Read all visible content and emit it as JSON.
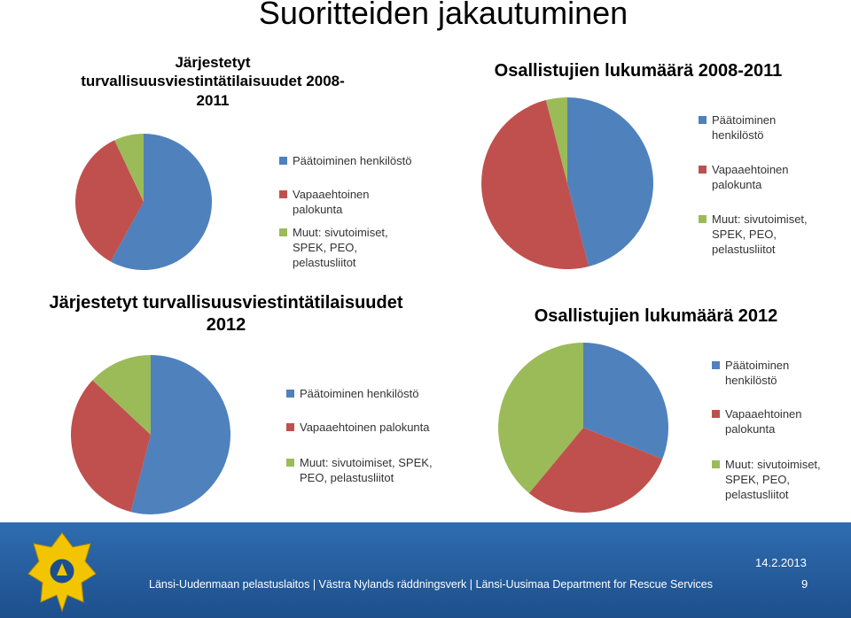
{
  "title": "Suoritteiden jakautuminen",
  "chart_data": [
    {
      "type": "pie",
      "title": "Järjestetyt turvallisuusviestintätilaisuudet 2008-2011",
      "categories": [
        "Päätoiminen henkilöstö",
        "Vapaaehtoinen palokunta",
        "Muut: sivutoimiset, SPEK, PEO, pelastusliitot"
      ],
      "values": [
        58,
        35,
        7
      ],
      "colors": [
        "#4f81bd",
        "#c0504d",
        "#9bbb59"
      ]
    },
    {
      "type": "pie",
      "title": "Osallistujien lukumäärä 2008-2011",
      "categories": [
        "Päätoiminen henkilöstö",
        "Vapaaehtoinen palokunta",
        "Muut: sivutoimiset, SPEK, PEO, pelastusliitot"
      ],
      "values": [
        46,
        50,
        4
      ],
      "colors": [
        "#4f81bd",
        "#c0504d",
        "#9bbb59"
      ]
    },
    {
      "type": "pie",
      "title": "Järjestetyt turvallisuusviestintätilaisuudet 2012",
      "categories": [
        "Päätoiminen henkilöstö",
        "Vapaaehtoinen palokunta",
        "Muut: sivutoimiset, SPEK, PEO, pelastusliitot"
      ],
      "values": [
        54,
        33,
        13
      ],
      "colors": [
        "#4f81bd",
        "#c0504d",
        "#9bbb59"
      ]
    },
    {
      "type": "pie",
      "title": "Osallistujien lukumäärä 2012",
      "categories": [
        "Päätoiminen henkilöstö",
        "Vapaaehtoinen palokunta",
        "Muut: sivutoimiset, SPEK, PEO, pelastusliitot"
      ],
      "values": [
        31,
        30,
        39
      ],
      "colors": [
        "#4f81bd",
        "#c0504d",
        "#9bbb59"
      ]
    }
  ],
  "footer": {
    "organization": "Länsi-Uudenmaan pelastuslaitos | Västra Nylands räddningsverk | Länsi-Uusimaa Department for Rescue Services",
    "date": "14.2.2013",
    "page": "9"
  }
}
